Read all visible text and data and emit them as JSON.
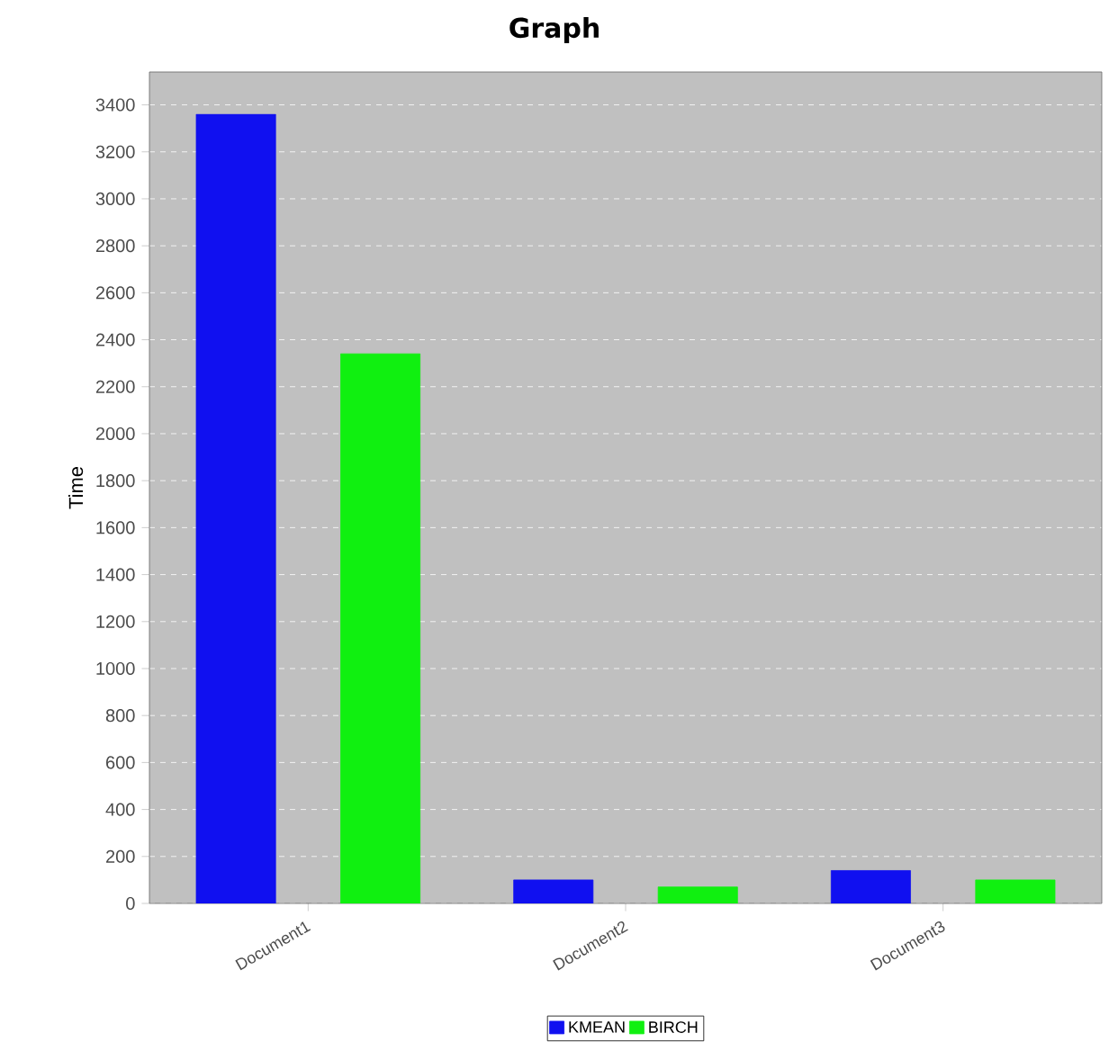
{
  "chart_data": {
    "type": "bar",
    "title": "Graph",
    "ylabel": "Time",
    "categories": [
      "Document1",
      "Document2",
      "Document3"
    ],
    "series": [
      {
        "name": "KMEAN",
        "color": "#1010f0",
        "values": [
          3360,
          100,
          140
        ]
      },
      {
        "name": "BIRCH",
        "color": "#10f010",
        "values": [
          2340,
          70,
          100
        ]
      }
    ],
    "ylim": [
      0,
      3540
    ],
    "yticks": [
      0,
      200,
      400,
      600,
      800,
      1000,
      1200,
      1400,
      1600,
      1800,
      2000,
      2200,
      2400,
      2600,
      2800,
      3000,
      3200,
      3400
    ],
    "grid": "y",
    "legend": "bottom"
  }
}
